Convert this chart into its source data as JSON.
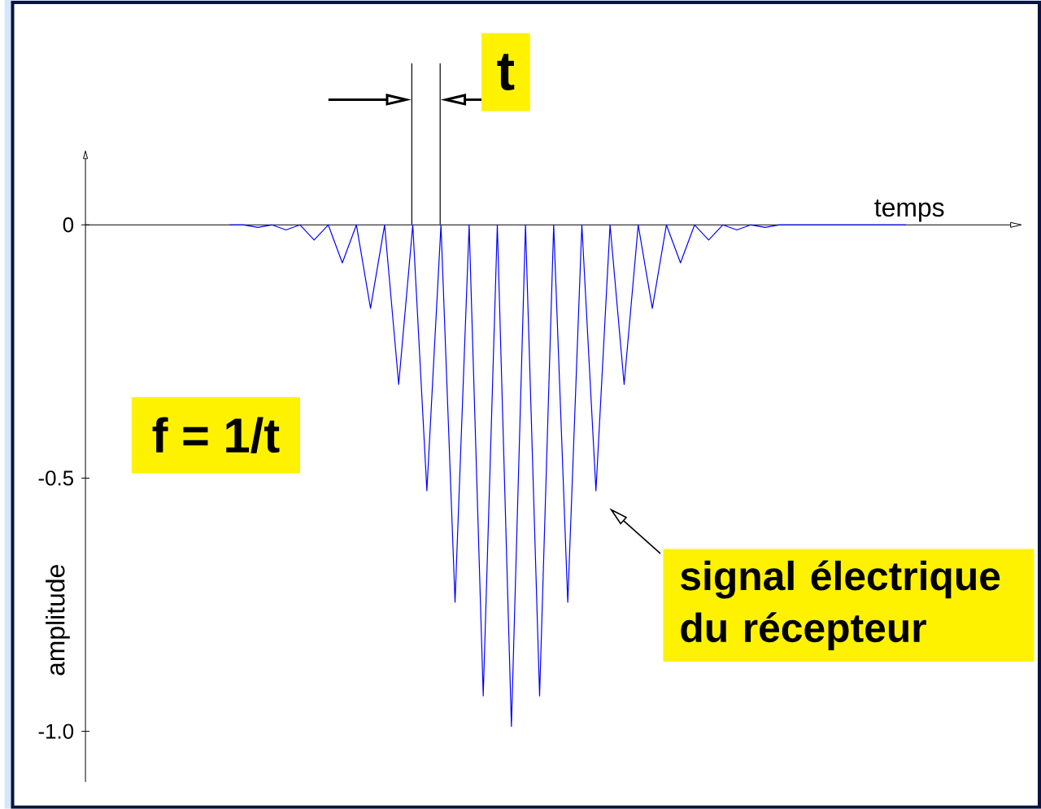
{
  "chart_data": {
    "type": "line",
    "xlabel": "temps",
    "ylabel": "amplitude",
    "categories": [
      null,
      null,
      null,
      null,
      null,
      null,
      null,
      null,
      null,
      null,
      null,
      null,
      null,
      null,
      null,
      null,
      null,
      null,
      null,
      null,
      null,
      null,
      null,
      null,
      null,
      null,
      null,
      null,
      null,
      null,
      null,
      null,
      null,
      null,
      null,
      null,
      null,
      null,
      null,
      null,
      null,
      null,
      null,
      null,
      null,
      null,
      null,
      null,
      null
    ],
    "series": [
      {
        "color": "#0000ff",
        "values": [
          0,
          0,
          -0.005,
          0,
          -0.01,
          0,
          -0.03,
          0,
          -0.075,
          0,
          -0.165,
          0,
          -0.315,
          0,
          -0.525,
          0,
          -0.745,
          0,
          -0.93,
          0,
          -0.99,
          0,
          -0.93,
          0,
          -0.745,
          0,
          -0.525,
          0,
          -0.315,
          0,
          -0.165,
          0,
          -0.075,
          0,
          -0.03,
          0,
          -0.01,
          0,
          -0.005,
          0,
          0,
          0,
          0,
          0,
          0,
          0,
          0,
          0,
          0
        ]
      }
    ],
    "ylim": [
      -1.1,
      0.13
    ],
    "yticks": [
      0,
      -0.5,
      {
        "value": -1.0,
        "label": "-1.0"
      }
    ],
    "tick_labels": "y",
    "marker": "none",
    "annotations": [
      "t",
      "f = 1/t",
      "signal électrique du récepteur"
    ]
  }
}
